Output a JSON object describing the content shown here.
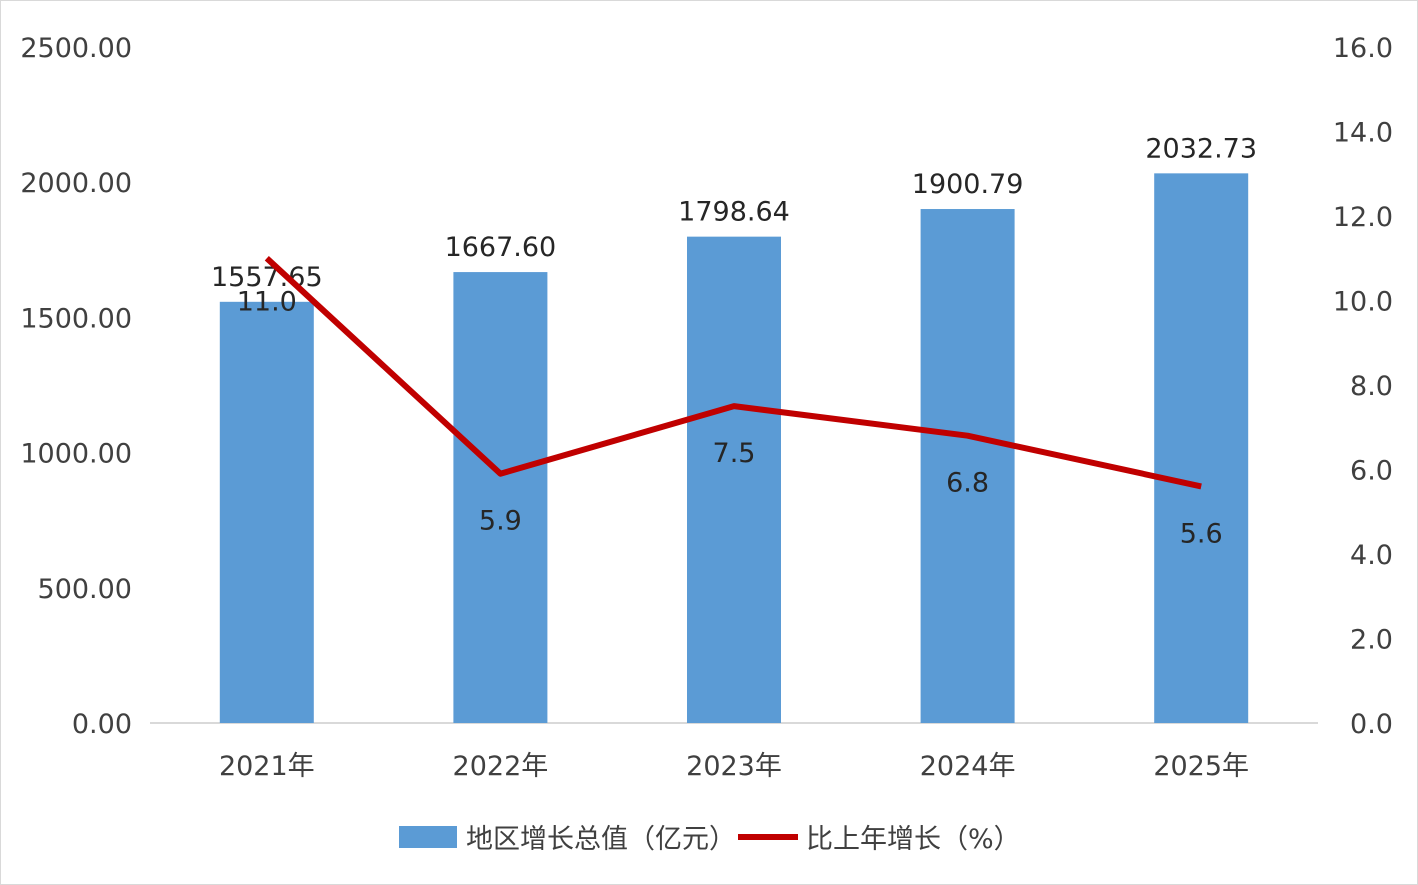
{
  "chart_data": {
    "type": "bar+line",
    "categories": [
      "2021年",
      "2022年",
      "2023年",
      "2024年",
      "2025年"
    ],
    "series": [
      {
        "name": "地区增长总值（亿元）",
        "type": "bar",
        "axis": "left",
        "values": [
          1557.65,
          1667.6,
          1798.64,
          1900.79,
          2032.73
        ],
        "labels": [
          "1557.65",
          "1667.60",
          "1798.64",
          "1900.79",
          "2032.73"
        ],
        "color": "#5b9bd5"
      },
      {
        "name": "比上年增长（%）",
        "type": "line",
        "axis": "right",
        "values": [
          11.0,
          5.9,
          7.5,
          6.8,
          5.6
        ],
        "labels": [
          "11.0",
          "5.9",
          "7.5",
          "6.8",
          "5.6"
        ],
        "color": "#c00000"
      }
    ],
    "y_left": {
      "ylim": [
        0,
        2500
      ],
      "ticks": [
        "0.00",
        "500.00",
        "1000.00",
        "1500.00",
        "2000.00",
        "2500.00"
      ]
    },
    "y_right": {
      "ylim": [
        0,
        16
      ],
      "ticks": [
        "0.0",
        "2.0",
        "4.0",
        "6.0",
        "8.0",
        "10.0",
        "12.0",
        "14.0",
        "16.0"
      ]
    },
    "grid": false,
    "legend": "bottom"
  }
}
